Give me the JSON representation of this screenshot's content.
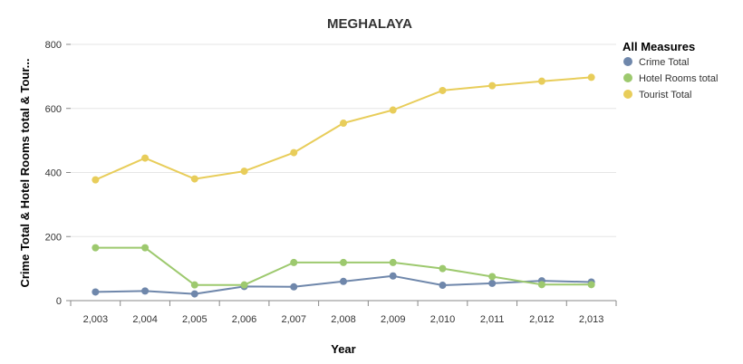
{
  "chart_data": {
    "type": "line",
    "title": "MEGHALAYA",
    "xlabel": "Year",
    "ylabel": "Crime Total & Hotel Rooms total & Tour...",
    "x": [
      "2,003",
      "2,004",
      "2,005",
      "2,006",
      "2,007",
      "2,008",
      "2,009",
      "2,010",
      "2,011",
      "2,012",
      "2,013"
    ],
    "y_ticks": [
      "0",
      "200",
      "400",
      "600",
      "800"
    ],
    "ylim": [
      0,
      800
    ],
    "grid": true,
    "legend": {
      "title": "All Measures",
      "position": "top-right"
    },
    "series": [
      {
        "name": "Crime Total",
        "color": "#6f87ab",
        "values": [
          27,
          30,
          21,
          44,
          43,
          60,
          77,
          48,
          54,
          62,
          58
        ]
      },
      {
        "name": "Hotel Rooms total",
        "color": "#9dc96e",
        "values": [
          165,
          165,
          49,
          49,
          119,
          119,
          119,
          100,
          75,
          50,
          50
        ]
      },
      {
        "name": "Tourist Total",
        "color": "#e8cd5a",
        "values": [
          377,
          445,
          380,
          404,
          462,
          554,
          595,
          656,
          671,
          685,
          697
        ]
      }
    ]
  }
}
